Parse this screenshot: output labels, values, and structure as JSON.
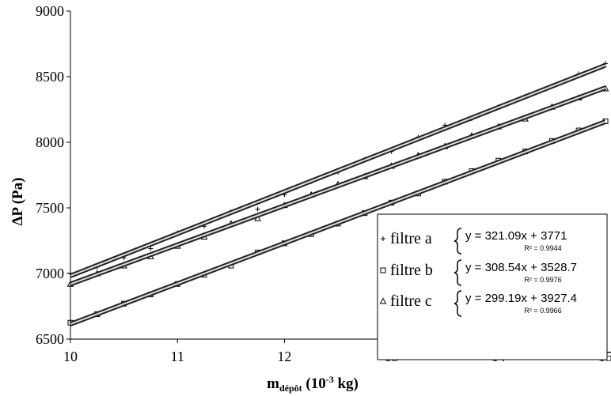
{
  "chart_data": {
    "type": "scatter",
    "xlabel": "m",
    "xlabel_sub": "dépôt",
    "xlabel_unit": " (10",
    "xlabel_exp": "-3",
    "xlabel_tail": " kg)",
    "ylabel": "ΔP (Pa)",
    "xlim": [
      10,
      15
    ],
    "ylim": [
      6500,
      9000
    ],
    "x_ticks": [
      "10",
      "11",
      "12",
      "13",
      "14",
      "15"
    ],
    "y_ticks": [
      "6500",
      "7000",
      "7500",
      "8000",
      "8500",
      "9000"
    ],
    "grid": false,
    "legend_position": "bottom-right",
    "series": [
      {
        "name": "filtre a",
        "marker": "plus",
        "fit": {
          "slope": 321.09,
          "intercept": 3771,
          "equation": "y = 321.09x + 3771",
          "r2": "R² = 0.9944"
        },
        "x": [
          10.0,
          10.25,
          10.5,
          10.75,
          11.0,
          11.25,
          11.5,
          11.75,
          12.0,
          12.25,
          12.5,
          12.75,
          13.0,
          13.25,
          13.5,
          13.75,
          14.0,
          14.25,
          14.5,
          14.75,
          15.0
        ],
        "y": [
          7002,
          7050,
          7120,
          7190,
          7310,
          7360,
          7470,
          7490,
          7600,
          7700,
          7770,
          7870,
          7930,
          8040,
          8130,
          8180,
          8270,
          8350,
          8430,
          8520,
          8600
        ]
      },
      {
        "name": "filtre b",
        "marker": "square",
        "fit": {
          "slope": 308.54,
          "intercept": 3528.7,
          "equation": "y = 308.54x + 3528.7",
          "r2": "R² = 0.9976"
        },
        "x": [
          10.0,
          10.25,
          10.5,
          10.75,
          11.0,
          11.25,
          11.5,
          11.75,
          12.0,
          12.25,
          12.5,
          12.75,
          13.0,
          13.25,
          13.5,
          13.75,
          14.0,
          14.25,
          14.5,
          14.75,
          15.0
        ],
        "y": [
          6625,
          6690,
          6770,
          6840,
          6920,
          6990,
          7060,
          7160,
          7230,
          7300,
          7380,
          7460,
          7540,
          7610,
          7700,
          7780,
          7860,
          7930,
          8010,
          8090,
          8160
        ]
      },
      {
        "name": "filtre c",
        "marker": "triangle",
        "fit": {
          "slope": 299.19,
          "intercept": 3927.4,
          "equation": "y = 299.19x + 3927.4",
          "r2": "R² = 0.9966"
        },
        "x": [
          10.0,
          10.25,
          10.5,
          10.75,
          11.0,
          11.25,
          11.5,
          11.75,
          12.0,
          12.25,
          12.5,
          12.75,
          13.0,
          13.25,
          13.5,
          13.75,
          14.0,
          14.25,
          14.5,
          14.75,
          15.0
        ],
        "y": [
          6920,
          7000,
          7060,
          7130,
          7210,
          7280,
          7380,
          7420,
          7520,
          7600,
          7680,
          7740,
          7820,
          7900,
          7970,
          8050,
          8120,
          8180,
          8270,
          8340,
          8410
        ]
      }
    ]
  }
}
